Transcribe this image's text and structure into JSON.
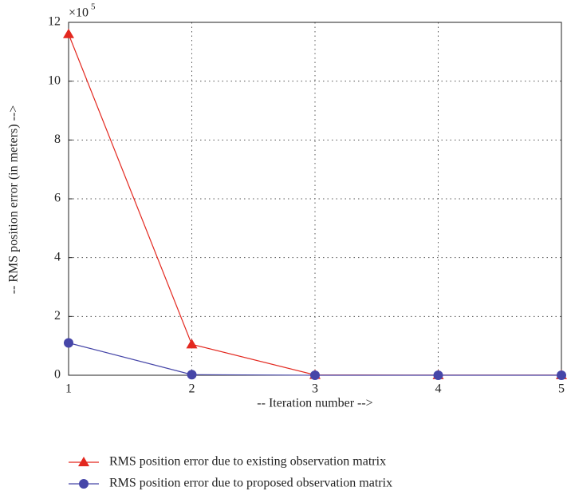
{
  "chart_data": {
    "type": "line",
    "x_label": "-- Iteration number -->",
    "y_label": "-- RMS position error (in meters) -->",
    "y_scale": {
      "base": "×10",
      "exponent": "5"
    },
    "x": [
      1,
      2,
      3,
      4,
      5
    ],
    "series": [
      {
        "name": "RMS position error due to existing observation matrix",
        "color": "#e3281f",
        "marker": "triangle",
        "values": [
          11.6,
          1.05,
          0.01,
          0.003,
          0.003
        ]
      },
      {
        "name": "RMS position error due to proposed observation matrix",
        "color": "#4646a8",
        "marker": "circle",
        "values": [
          1.1,
          0.02,
          0,
          0,
          0
        ]
      }
    ],
    "xlim": [
      1,
      5
    ],
    "xticks": [
      1,
      2,
      3,
      4,
      5
    ],
    "ylim": [
      0,
      12
    ],
    "yticks": [
      0,
      2,
      4,
      6,
      8,
      10,
      12
    ],
    "grid": true
  }
}
